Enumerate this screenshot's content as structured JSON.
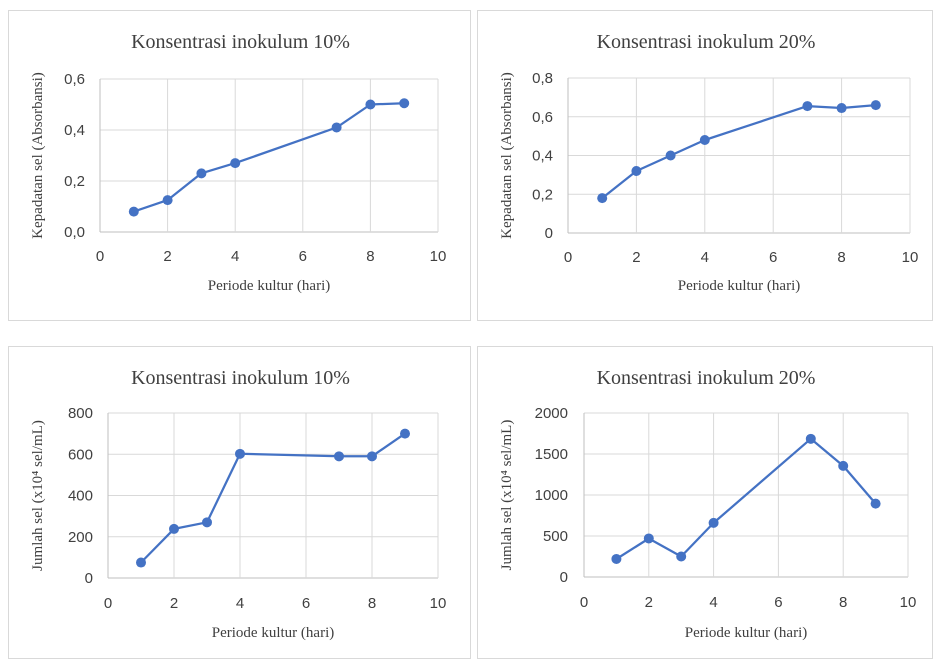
{
  "chart_data": [
    {
      "type": "scatter",
      "title": "Konsentrasi inokulum 10%",
      "xlabel": "Periode kultur (hari)",
      "ylabel": "Kepadatan sel (Absorbansi)",
      "xlim": [
        0,
        10
      ],
      "ylim": [
        0,
        0.6
      ],
      "xticks": [
        "0",
        "2",
        "4",
        "6",
        "8",
        "10"
      ],
      "yticks": [
        "0,0",
        "0,2",
        "0,4",
        "0,6"
      ],
      "grid": true,
      "color": "#4472c4",
      "series": [
        {
          "x": [
            1,
            2,
            3,
            4,
            7,
            8,
            9
          ],
          "values": [
            0.08,
            0.125,
            0.23,
            0.27,
            0.41,
            0.5,
            0.505
          ]
        }
      ]
    },
    {
      "type": "scatter",
      "title": "Konsentrasi inokulum 20%",
      "xlabel": "Periode kultur (hari)",
      "ylabel": "Kepadatan sel (Absorbansi)",
      "xlim": [
        0,
        10
      ],
      "ylim": [
        0,
        0.8
      ],
      "xticks": [
        "0",
        "2",
        "4",
        "6",
        "8",
        "10"
      ],
      "yticks": [
        "0",
        "0,2",
        "0,4",
        "0,6",
        "0,8"
      ],
      "grid": true,
      "color": "#4472c4",
      "series": [
        {
          "x": [
            1,
            2,
            3,
            4,
            7,
            8,
            9
          ],
          "values": [
            0.18,
            0.32,
            0.4,
            0.48,
            0.655,
            0.645,
            0.66
          ]
        }
      ]
    },
    {
      "type": "scatter",
      "title": "Konsentrasi inokulum 10%",
      "xlabel": "Periode kultur (hari)",
      "ylabel": "Jumlah sel (x10⁴ sel/mL)",
      "xlim": [
        0,
        10
      ],
      "ylim": [
        0,
        800
      ],
      "xticks": [
        "0",
        "2",
        "4",
        "6",
        "8",
        "10"
      ],
      "yticks": [
        "0",
        "200",
        "400",
        "600",
        "800"
      ],
      "grid": true,
      "color": "#4472c4",
      "series": [
        {
          "x": [
            1,
            2,
            3,
            4,
            7,
            8,
            9
          ],
          "values": [
            75,
            238,
            270,
            602,
            590,
            590,
            700
          ]
        }
      ]
    },
    {
      "type": "scatter",
      "title": "Konsentrasi inokulum 20%",
      "xlabel": "Periode kultur (hari)",
      "ylabel": "Jumlah sel (x10⁴ sel/mL)",
      "xlim": [
        0,
        10
      ],
      "ylim": [
        0,
        2000
      ],
      "xticks": [
        "0",
        "2",
        "4",
        "6",
        "8",
        "10"
      ],
      "yticks": [
        "0",
        "500",
        "1000",
        "1500",
        "2000"
      ],
      "grid": true,
      "color": "#4472c4",
      "series": [
        {
          "x": [
            1,
            2,
            3,
            4,
            7,
            8,
            9
          ],
          "values": [
            220,
            470,
            250,
            660,
            1685,
            1355,
            895
          ]
        }
      ]
    }
  ]
}
